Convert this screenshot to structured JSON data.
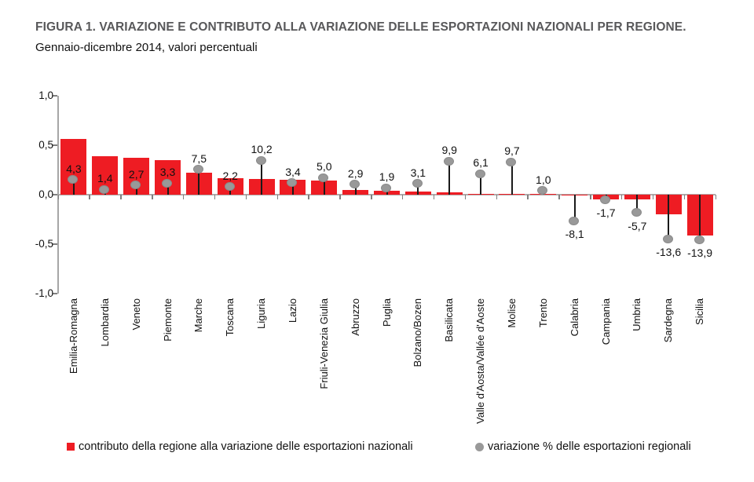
{
  "title": "FIGURA 1. VARIAZIONE E CONTRIBUTO ALLA VARIAZIONE DELLE ESPORTAZIONI NAZIONALI PER REGIONE.",
  "subtitle": "Gennaio-dicembre 2014, valori percentuali",
  "colors": {
    "bar_red": "#ee1c23",
    "dot_gray": "#999999",
    "stem_black": "#1a1a1a",
    "axis_gray": "#a6a6a6",
    "title_gray": "#58585a"
  },
  "chart_data": {
    "type": "bar",
    "title": "FIGURA 1. VARIAZIONE E CONTRIBUTO ALLA VARIAZIONE DELLE ESPORTAZIONI NAZIONALI PER REGIONE.",
    "subtitle": "Gennaio-dicembre 2014, valori percentuali",
    "grid": false,
    "legend_position": "bottom",
    "categories": [
      "Emilia-Romagna",
      "Lombardia",
      "Veneto",
      "Piemonte",
      "Marche",
      "Toscana",
      "Liguria",
      "Lazio",
      "Friuli-Venezia Giulia",
      "Abruzzo",
      "Puglia",
      "Bolzano/Bozen",
      "Basilicata",
      "Valle d'Aosta/Vallée d'Aoste",
      "Molise",
      "Trento",
      "Calabria",
      "Campania",
      "Umbria",
      "Sardegna",
      "Sicilia"
    ],
    "y_axis": {
      "min": -1.0,
      "max": 1.0,
      "tick_labels": [
        "1,0",
        "0,5",
        "0,0",
        "-0,5",
        "-1,0"
      ]
    },
    "series": [
      {
        "name": "contributo della regione alla variazione delle esportazioni nazionali",
        "type": "bar",
        "color": "#ee1c23",
        "axis": "left",
        "values": [
          0.56,
          0.39,
          0.37,
          0.35,
          0.22,
          0.17,
          0.16,
          0.15,
          0.14,
          0.05,
          0.04,
          0.03,
          0.02,
          0.01,
          0.01,
          0.01,
          -0.01,
          -0.05,
          -0.05,
          -0.2,
          -0.41
        ]
      },
      {
        "name": "variazione % delle esportazioni regionali",
        "type": "point",
        "color": "#999999",
        "axis_scale": {
          "min": -30,
          "max": 30
        },
        "values": [
          4.3,
          1.4,
          2.7,
          3.3,
          7.5,
          2.2,
          10.2,
          3.4,
          5.0,
          2.9,
          1.9,
          3.1,
          9.9,
          6.1,
          9.7,
          1.0,
          -8.1,
          -1.7,
          -5.7,
          -13.6,
          -13.9
        ],
        "labels": [
          "4,3",
          "1,4",
          "2,7",
          "3,3",
          "7,5",
          "2,2",
          "10,2",
          "3,4",
          "5,0",
          "2,9",
          "1,9",
          "3,1",
          "9,9",
          "6,1",
          "9,7",
          "1,0",
          "-8,1",
          "-1,7",
          "-5,7",
          "-13,6",
          "-13,9"
        ]
      }
    ]
  }
}
